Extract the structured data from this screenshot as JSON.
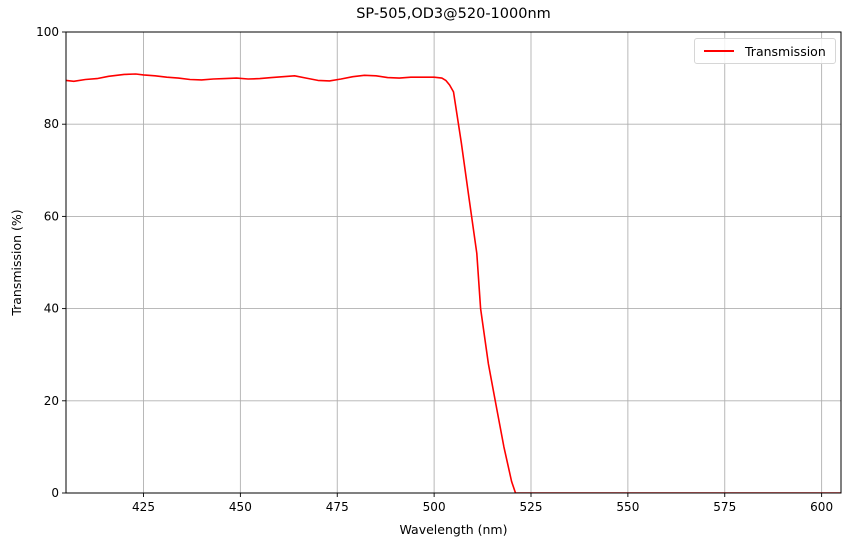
{
  "chart_data": {
    "type": "line",
    "title": "SP-505,OD3@520-1000nm",
    "xlabel": "Wavelength (nm)",
    "ylabel": "Transmission (%)",
    "xlim": [
      405,
      605
    ],
    "ylim": [
      0,
      100
    ],
    "xticks": [
      425,
      450,
      475,
      500,
      525,
      550,
      575,
      600
    ],
    "yticks": [
      0,
      20,
      40,
      60,
      80,
      100
    ],
    "grid": true,
    "legend_position": "upper right",
    "series": [
      {
        "name": "Transmission",
        "color": "#ff0000",
        "x": [
          405,
          407,
          410,
          413,
          416,
          420,
          423,
          425,
          428,
          431,
          434,
          437,
          440,
          443,
          446,
          449,
          452,
          455,
          458,
          461,
          464,
          467,
          470,
          473,
          476,
          479,
          482,
          485,
          488,
          491,
          494,
          497,
          500,
          502,
          503,
          504,
          505,
          507,
          509,
          511,
          512,
          514,
          516,
          518,
          520,
          521,
          525,
          550,
          575,
          600,
          605
        ],
        "y": [
          89.5,
          89.3,
          89.7,
          89.9,
          90.4,
          90.8,
          90.9,
          90.7,
          90.5,
          90.2,
          90.0,
          89.7,
          89.6,
          89.8,
          89.9,
          90.0,
          89.8,
          89.9,
          90.1,
          90.3,
          90.5,
          90.0,
          89.5,
          89.4,
          89.8,
          90.3,
          90.6,
          90.5,
          90.1,
          90.0,
          90.2,
          90.2,
          90.2,
          90.0,
          89.5,
          88.5,
          87.0,
          76.0,
          64.0,
          52.0,
          40.0,
          28.0,
          19.0,
          10.0,
          2.5,
          0.0,
          0.0,
          0.0,
          0.0,
          0.0,
          0.0
        ]
      }
    ]
  },
  "legend": {
    "label": "Transmission"
  }
}
